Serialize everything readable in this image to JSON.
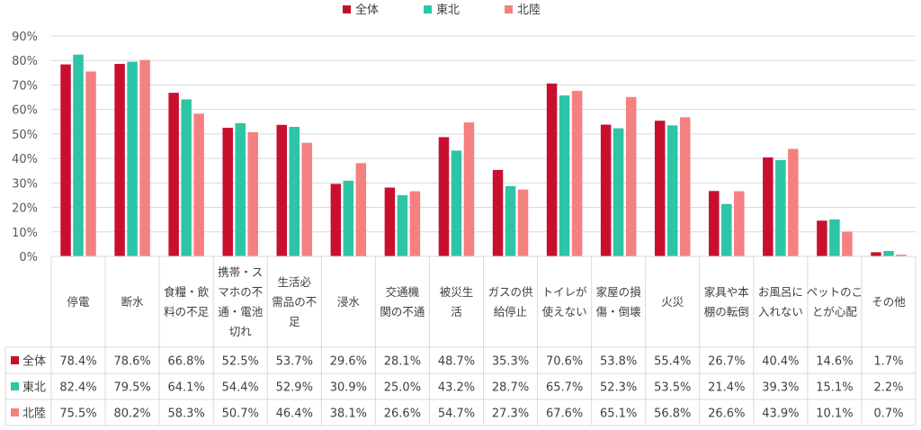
{
  "chart_data": {
    "type": "bar",
    "ylim": [
      0,
      90
    ],
    "yticks": [
      "0%",
      "10%",
      "20%",
      "30%",
      "40%",
      "50%",
      "60%",
      "70%",
      "80%",
      "90%"
    ],
    "grid": true,
    "legend_position": "top",
    "category_lines": [
      [
        "停電"
      ],
      [
        "断水"
      ],
      [
        "食糧・飲",
        "料の不足"
      ],
      [
        "携帯・ス",
        "マホの不",
        "通・電池",
        "切れ"
      ],
      [
        "生活必",
        "需品の不",
        "足"
      ],
      [
        "浸水"
      ],
      [
        "交通機",
        "関の不通"
      ],
      [
        "被災生",
        "活"
      ],
      [
        "ガスの供",
        "給停止"
      ],
      [
        "トイレが",
        "使えない"
      ],
      [
        "家屋の損",
        "傷・倒壊"
      ],
      [
        "火災"
      ],
      [
        "家具や本",
        "棚の転倒"
      ],
      [
        "お風呂に",
        "入れない"
      ],
      [
        "ペットのこ",
        "とが心配"
      ],
      [
        "その他"
      ]
    ],
    "series": [
      {
        "name": "全体",
        "color": "#c8102e",
        "values": [
          78.4,
          78.6,
          66.8,
          52.5,
          53.7,
          29.6,
          28.1,
          48.7,
          35.3,
          70.6,
          53.8,
          55.4,
          26.7,
          40.4,
          14.6,
          1.7
        ],
        "labels": [
          "78.4%",
          "78.6%",
          "66.8%",
          "52.5%",
          "53.7%",
          "29.6%",
          "28.1%",
          "48.7%",
          "35.3%",
          "70.6%",
          "53.8%",
          "55.4%",
          "26.7%",
          "40.4%",
          "14.6%",
          "1.7%"
        ]
      },
      {
        "name": "東北",
        "color": "#2ec4a6",
        "values": [
          82.4,
          79.5,
          64.1,
          54.4,
          52.9,
          30.9,
          25.0,
          43.2,
          28.7,
          65.7,
          52.3,
          53.5,
          21.4,
          39.3,
          15.1,
          2.2
        ],
        "labels": [
          "82.4%",
          "79.5%",
          "64.1%",
          "54.4%",
          "52.9%",
          "30.9%",
          "25.0%",
          "43.2%",
          "28.7%",
          "65.7%",
          "52.3%",
          "53.5%",
          "21.4%",
          "39.3%",
          "15.1%",
          "2.2%"
        ]
      },
      {
        "name": "北陸",
        "color": "#f58080",
        "values": [
          75.5,
          80.2,
          58.3,
          50.7,
          46.4,
          38.1,
          26.6,
          54.7,
          27.3,
          67.6,
          65.1,
          56.8,
          26.6,
          43.9,
          10.1,
          0.7
        ],
        "labels": [
          "75.5%",
          "80.2%",
          "58.3%",
          "50.7%",
          "46.4%",
          "38.1%",
          "26.6%",
          "54.7%",
          "27.3%",
          "67.6%",
          "65.1%",
          "56.8%",
          "26.6%",
          "43.9%",
          "10.1%",
          "0.7%"
        ]
      }
    ]
  }
}
